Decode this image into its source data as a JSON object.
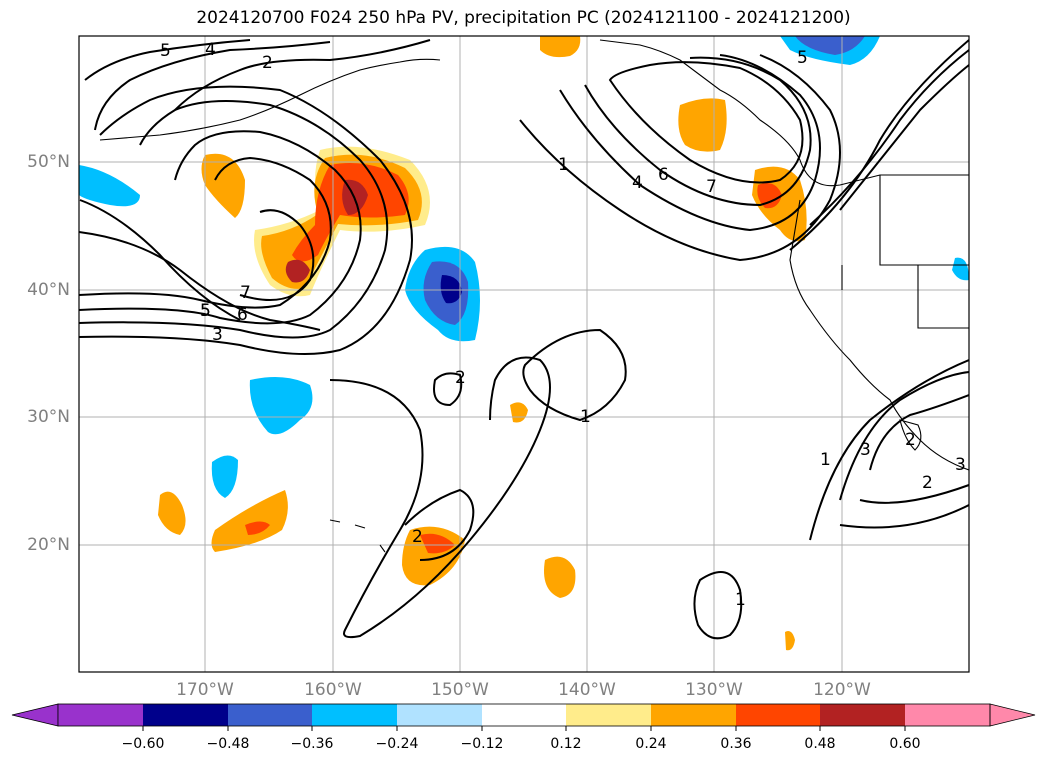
{
  "title": "2024120700 F024 250 hPa PV, precipitation PC (2024121100 - 2024121200)",
  "lat_labels": [
    "50°N",
    "40°N",
    "30°N",
    "20°N"
  ],
  "lon_labels": [
    "170°W",
    "160°W",
    "150°W",
    "140°W",
    "130°W",
    "120°W"
  ],
  "colorbar": {
    "ticks": [
      "−0.60",
      "−0.48",
      "−0.36",
      "−0.24",
      "−0.12",
      "0.12",
      "0.24",
      "0.36",
      "0.48",
      "0.60"
    ],
    "colors": [
      "#9932cc",
      "#00008b",
      "#3a5fcd",
      "#00bfff",
      "#b0e2ff",
      "#ffffff",
      "#ffec8b",
      "#ffa500",
      "#ff4500",
      "#b22222",
      "#ff88aa"
    ]
  },
  "contour_labels": [
    "5",
    "4",
    "2",
    "5",
    "1",
    "4",
    "6",
    "7",
    "5",
    "7",
    "6",
    "5",
    "3",
    "2",
    "1",
    "2",
    "1",
    "3",
    "2",
    "1",
    "2",
    "3"
  ]
}
